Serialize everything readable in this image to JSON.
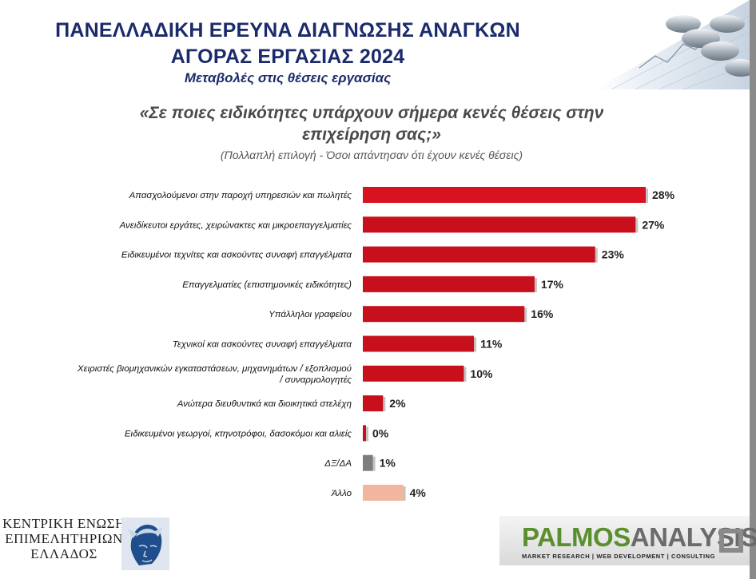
{
  "header": {
    "title_line1": "ΠΑΝΕΛΛΑΔΙΚΗ ΕΡΕΥΝΑ ΔΙΑΓΝΩΣΗΣ ΑΝΑΓΚΩΝ",
    "title_line2": "ΑΓΟΡΑΣ ΕΡΓΑΣΙΑΣ 2024",
    "subtitle": "Μεταβολές στις θέσεις εργασίας"
  },
  "question": {
    "line1": "«Σε ποιες ειδικότητες υπάρχουν σήμερα κενές θέσεις στην",
    "line2": "επιχείρηση σας;»",
    "note": "(Πολλαπλή επιλογή - Όσοι απάντησαν ότι έχουν κενές θέσεις)"
  },
  "chart_data": {
    "type": "bar",
    "orientation": "horizontal",
    "categories": [
      "Απασχολούμενοι στην παροχή υπηρεσιών και πωλητές",
      "Ανειδίκευτοι εργάτες, χειρώνακτες και μικροεπαγγελματίες",
      "Ειδικευμένοι τεχνίτες και ασκούντες συναφή επαγγέλματα",
      "Επαγγελματίες (επιστημονικές ειδικότητες)",
      "Υπάλληλοι γραφείου",
      "Τεχνικοί και ασκούντες συναφή επαγγέλματα",
      "Χειριστές βιομηχανικών εγκαταστάσεων, μηχανημάτων / εξοπλισμού / συναρμολογητές",
      "Ανώτερα διευθυντικά και διοικητικά στελέχη",
      "Ειδικευμένοι γεωργοί, κτηνοτρόφοι, δασοκόμοι και αλιείς",
      "ΔΞ/ΔΑ",
      "Άλλο"
    ],
    "category_lines": [
      [
        "Απασχολούμενοι στην παροχή υπηρεσιών και πωλητές"
      ],
      [
        "Ανειδίκευτοι εργάτες, χειρώνακτες και μικροεπαγγελματίες"
      ],
      [
        "Ειδικευμένοι τεχνίτες και ασκούντες συναφή επαγγέλματα"
      ],
      [
        "Επαγγελματίες (επιστημονικές ειδικότητες)"
      ],
      [
        "Υπάλληλοι γραφείου"
      ],
      [
        "Τεχνικοί και ασκούντες συναφή επαγγέλματα"
      ],
      [
        "Χειριστές βιομηχανικών εγκαταστάσεων, μηχανημάτων / εξοπλισμού",
        "/ συναρμολογητές"
      ],
      [
        "Ανώτερα διευθυντικά και διοικητικά στελέχη"
      ],
      [
        "Ειδικευμένοι γεωργοί, κτηνοτρόφοι, δασοκόμοι και αλιείς"
      ],
      [
        "ΔΞ/ΔΑ"
      ],
      [
        "Άλλο"
      ]
    ],
    "values": [
      28,
      27,
      23,
      17,
      16,
      11,
      10,
      2,
      0,
      1,
      4
    ],
    "value_labels": [
      "28%",
      "27%",
      "23%",
      "17%",
      "16%",
      "11%",
      "10%",
      "2%",
      "0%",
      "1%",
      "4%"
    ],
    "colors": [
      "#d8121f",
      "#c8101c",
      "#c8101c",
      "#c8101c",
      "#c8101c",
      "#c8101c",
      "#c8101c",
      "#c8101c",
      "#c8101c",
      "#7d7d7d",
      "#f2b59d"
    ],
    "xlim": [
      0,
      28
    ],
    "grid": false,
    "legend": false
  },
  "footer": {
    "left_logo_lines": [
      "ΚΕΝΤΡΙΚΗ ΕΝΩΣΗ",
      "ΕΠΙΜΕΛΗΤΗΡΙΩΝ",
      "ΕΛΛΑΔΟΣ"
    ],
    "right_logo_part1": "PALMOS",
    "right_logo_part2": "ANALYSIS",
    "right_tagline": "MARKET RESEARCH | WEB DEVELOPMENT | CONSULTING"
  },
  "icons": {
    "coins": "coins-graph-icon",
    "hermes": "hermes-head-icon",
    "square": "palmos-square-icon"
  }
}
